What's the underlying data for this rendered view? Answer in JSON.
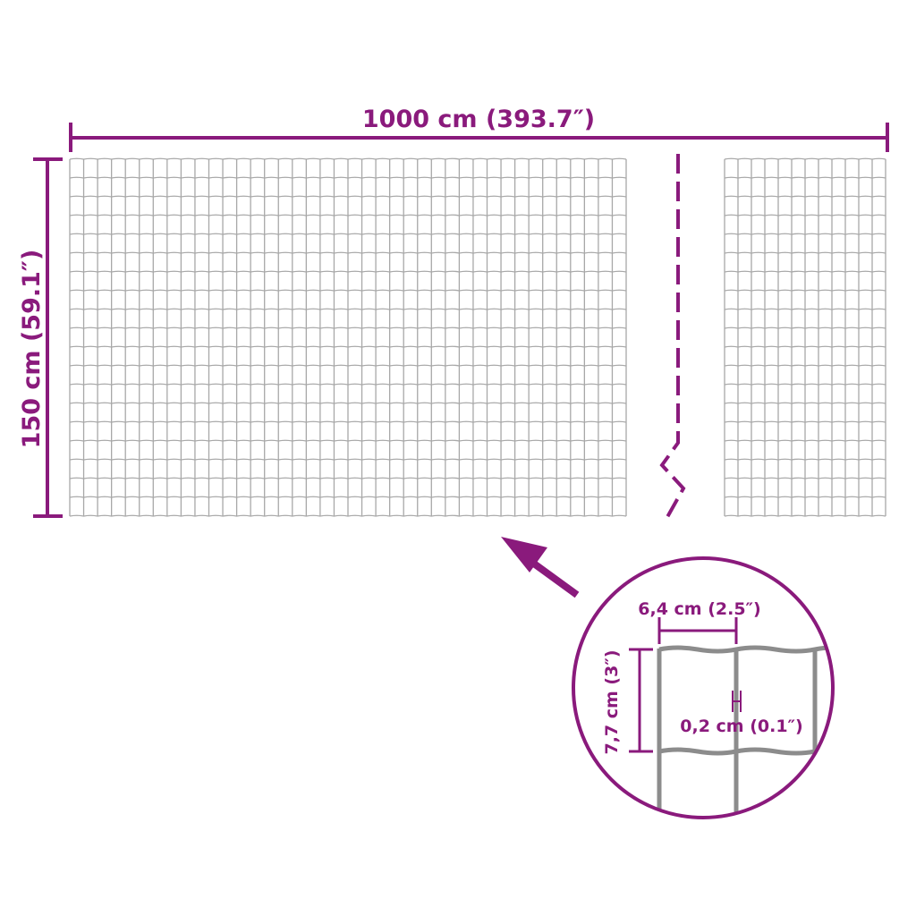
{
  "colors": {
    "accent": "#8a1a7c",
    "wire": "#a8a8a8",
    "wire_detail": "#8c8c8c"
  },
  "dimensions": {
    "length_label": "1000 cm (393.7″)",
    "height_label": "150 cm (59.1″)"
  },
  "detail": {
    "mesh_width_label": "6,4 cm (2.5″)",
    "mesh_height_label": "7,7 cm (3″)",
    "wire_thickness_label": "0,2 cm (0.1″)"
  },
  "icons": {
    "arrow": "arrow-up-left-icon",
    "break": "break-line-icon"
  }
}
